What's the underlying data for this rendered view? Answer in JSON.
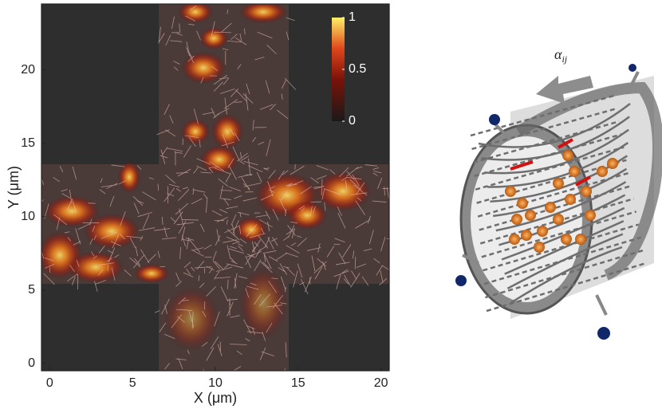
{
  "chart_data": {
    "type": "image",
    "xlabel": "X (μm)",
    "ylabel": "Y (μm)",
    "xlim": [
      -0.5,
      20.5
    ],
    "xticks": [
      0,
      5,
      10,
      15,
      20
    ],
    "ylim": [
      -0.5,
      24.5
    ],
    "yticks": [
      0,
      5,
      10,
      15,
      20
    ],
    "colorbar": {
      "lim": [
        0,
        1
      ],
      "ticks": [
        0,
        0.5,
        1
      ]
    }
  },
  "illustration": {
    "label": "α",
    "label_subscript": "ij"
  }
}
